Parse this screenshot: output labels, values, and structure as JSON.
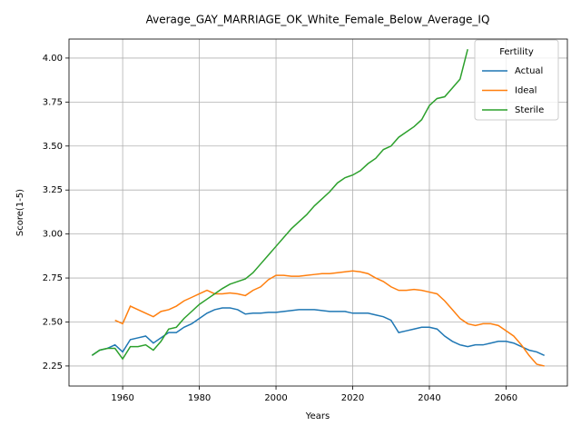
{
  "chart_data": {
    "type": "line",
    "title": "Average_GAY_MARRIAGE_OK_White_Female_Below_Average_IQ",
    "xlabel": "Years",
    "ylabel": "Score(1-5)",
    "x": [
      1952,
      1954,
      1956,
      1958,
      1960,
      1962,
      1964,
      1966,
      1968,
      1970,
      1972,
      1974,
      1976,
      1978,
      1980,
      1982,
      1984,
      1986,
      1988,
      1990,
      1992,
      1994,
      1996,
      1998,
      2000,
      2002,
      2004,
      2006,
      2008,
      2010,
      2012,
      2014,
      2016,
      2018,
      2020,
      2022,
      2024,
      2026,
      2028,
      2030,
      2032,
      2034,
      2036,
      2038,
      2040,
      2042,
      2044,
      2046,
      2048,
      2050,
      2052,
      2054,
      2056,
      2058,
      2060,
      2062,
      2064,
      2066,
      2068,
      2070
    ],
    "series": [
      {
        "name": "Actual",
        "color": "#1f77b4",
        "values": [
          2.31,
          2.34,
          2.35,
          2.37,
          2.33,
          2.4,
          2.41,
          2.42,
          2.38,
          2.41,
          2.44,
          2.44,
          2.47,
          2.49,
          2.52,
          2.55,
          2.57,
          2.58,
          2.58,
          2.57,
          2.545,
          2.55,
          2.55,
          2.555,
          2.555,
          2.56,
          2.565,
          2.57,
          2.57,
          2.57,
          2.565,
          2.56,
          2.56,
          2.56,
          2.55,
          2.55,
          2.55,
          2.54,
          2.53,
          2.51,
          2.44,
          2.45,
          2.46,
          2.47,
          2.47,
          2.46,
          2.42,
          2.39,
          2.37,
          2.36,
          2.37,
          2.37,
          2.38,
          2.39,
          2.39,
          2.38,
          2.36,
          2.34,
          2.33,
          2.31
        ]
      },
      {
        "name": "Ideal",
        "color": "#ff7f0e",
        "values": [
          null,
          null,
          null,
          2.51,
          2.49,
          2.59,
          2.57,
          2.55,
          2.53,
          2.56,
          2.57,
          2.59,
          2.62,
          2.64,
          2.66,
          2.68,
          2.66,
          2.66,
          2.665,
          2.66,
          2.65,
          2.68,
          2.7,
          2.74,
          2.765,
          2.765,
          2.76,
          2.76,
          2.765,
          2.77,
          2.775,
          2.775,
          2.78,
          2.785,
          2.79,
          2.785,
          2.775,
          2.75,
          2.73,
          2.7,
          2.68,
          2.68,
          2.685,
          2.68,
          2.67,
          2.66,
          2.62,
          2.57,
          2.52,
          2.49,
          2.48,
          2.49,
          2.49,
          2.48,
          2.45,
          2.42,
          2.37,
          2.31,
          2.26,
          2.25
        ]
      },
      {
        "name": "Sterile",
        "color": "#2ca02c",
        "values": [
          2.31,
          2.34,
          2.35,
          2.35,
          2.29,
          2.36,
          2.36,
          2.37,
          2.34,
          2.39,
          2.46,
          2.47,
          2.52,
          2.56,
          2.6,
          2.63,
          2.66,
          2.69,
          2.715,
          2.73,
          2.745,
          2.78,
          2.83,
          2.88,
          2.93,
          2.98,
          3.03,
          3.07,
          3.11,
          3.16,
          3.2,
          3.24,
          3.29,
          3.32,
          3.335,
          3.36,
          3.4,
          3.43,
          3.48,
          3.5,
          3.55,
          3.58,
          3.61,
          3.65,
          3.73,
          3.77,
          3.78,
          3.83,
          3.88,
          4.05,
          null,
          null,
          null,
          null,
          null,
          null,
          null,
          null,
          null,
          null
        ]
      }
    ],
    "xlim": [
      1946,
      2076
    ],
    "xticks": [
      1960,
      1980,
      2000,
      2020,
      2040,
      2060
    ],
    "ylim": [
      2.136,
      4.108
    ],
    "yticks": [
      2.25,
      {
        "value": 2.5,
        "label": "2.50"
      },
      2.75,
      {
        "value": 3,
        "label": "3.00"
      },
      3.25,
      {
        "value": 3.5,
        "label": "3.50"
      },
      3.75,
      {
        "value": 4,
        "label": "4.00"
      }
    ],
    "grid": true,
    "legend_title": "Fertility",
    "legend": "upper right"
  }
}
